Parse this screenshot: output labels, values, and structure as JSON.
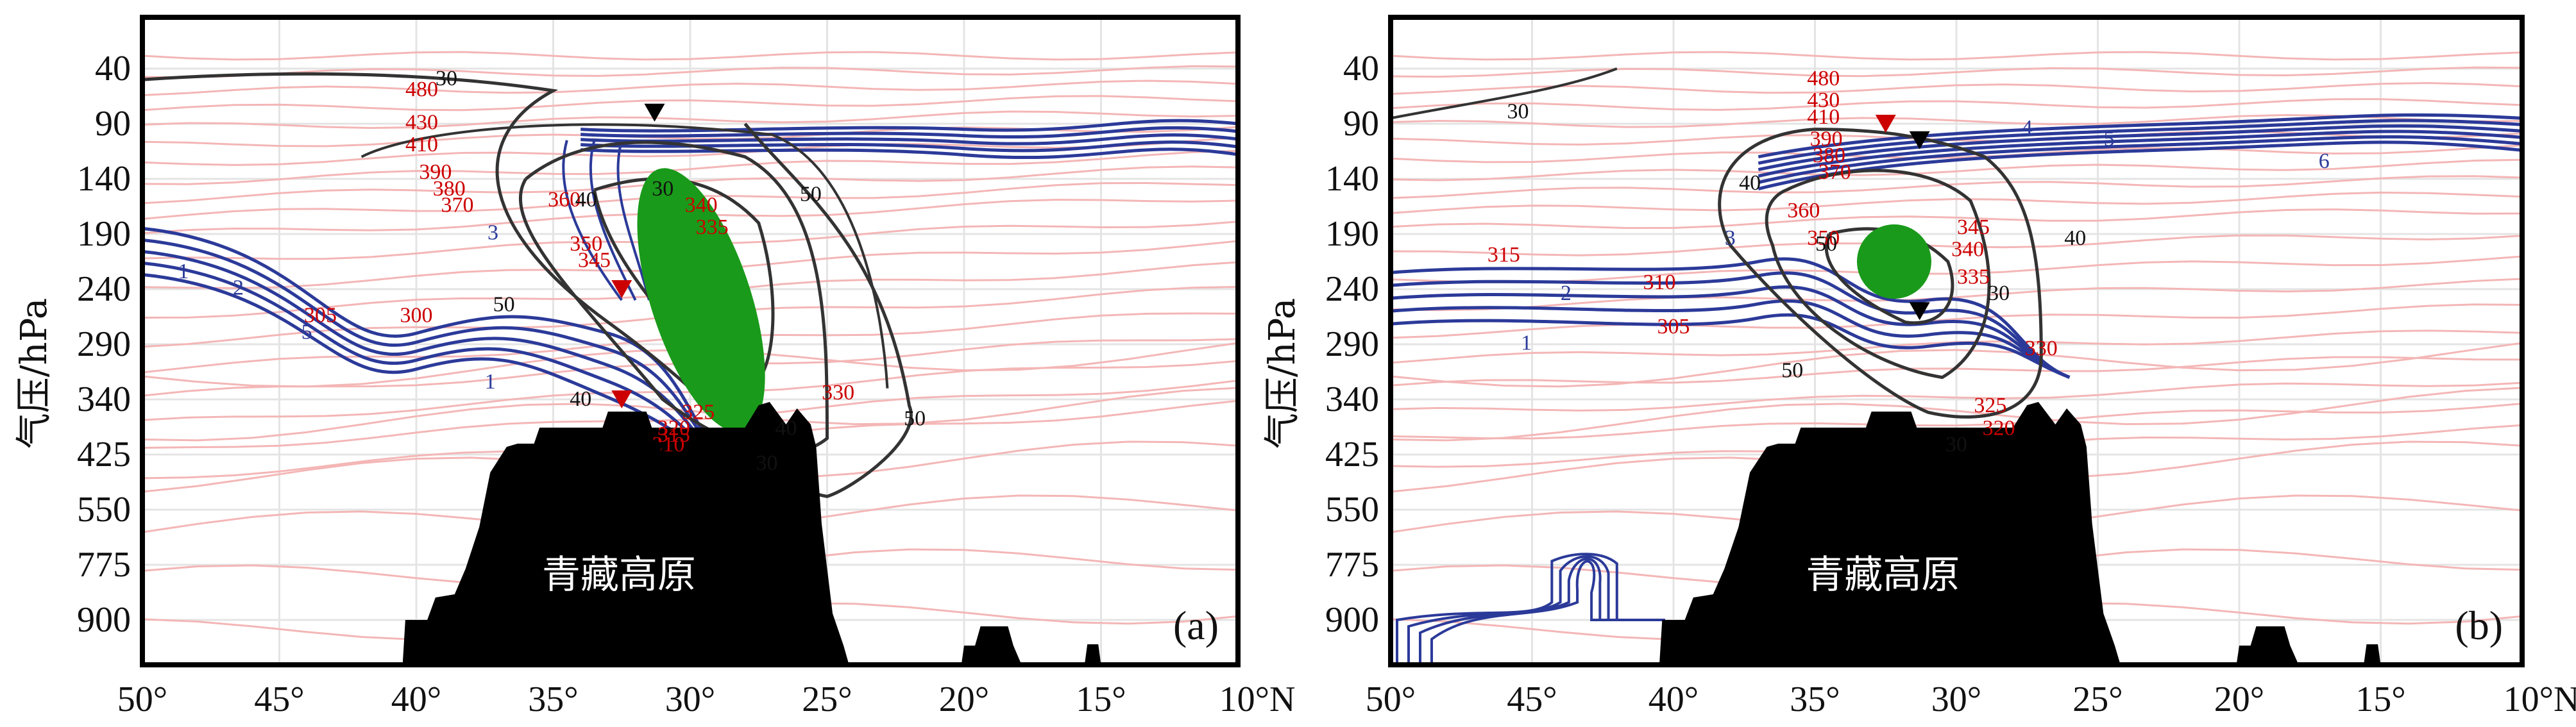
{
  "chart_data": [
    {
      "type": "contour",
      "panel_label": "(a)",
      "title": "",
      "xlabel": "",
      "ylabel": "气压/hPa",
      "x_ticks": [
        "50°",
        "45°",
        "40°",
        "35°",
        "30°",
        "25°",
        "20°",
        "15°",
        "10°N"
      ],
      "x_values": [
        50,
        45,
        40,
        35,
        30,
        25,
        20,
        15,
        10
      ],
      "xlim": [
        50,
        10
      ],
      "y_ticks": [
        "40",
        "90",
        "140",
        "190",
        "240",
        "290",
        "340",
        "425",
        "550",
        "775",
        "900"
      ],
      "y_values": [
        40,
        90,
        140,
        190,
        240,
        290,
        340,
        425,
        550,
        775,
        900
      ],
      "grid": true,
      "terrain_label": "青藏高原",
      "terrain_extent_lat": [
        40.5,
        24.5
      ],
      "series": [
        {
          "name": "potential_temperature",
          "color": "#cc0000",
          "line_color": "#f4b6b6",
          "labels": [
            "480",
            "430",
            "410",
            "390",
            "380",
            "370",
            "360",
            "350",
            "345",
            "340",
            "335",
            "330",
            "325",
            "320",
            "315",
            "310",
            "305",
            "300"
          ]
        },
        {
          "name": "PV",
          "color": "#2b3a99",
          "labels": [
            "1",
            "2",
            "3",
            "5"
          ]
        },
        {
          "name": "wind_speed",
          "color": "#333333",
          "labels": [
            "30",
            "40",
            "50"
          ]
        }
      ],
      "markers": [
        {
          "type": "triangle-down",
          "color": "#cc0000",
          "lat": 32.5,
          "p": 240
        },
        {
          "type": "triangle-down",
          "color": "#cc0000",
          "lat": 32.5,
          "p": 340
        },
        {
          "type": "triangle-down",
          "color": "#000000",
          "lat": 31.3,
          "p": 80
        },
        {
          "type": "triangle-down",
          "color": "#000000",
          "lat": 31.3,
          "p": 420
        }
      ],
      "highlight": {
        "shape": "ellipse",
        "color": "#1a9a1a",
        "center_lat": 29.6,
        "center_p": 250
      }
    },
    {
      "type": "contour",
      "panel_label": "(b)",
      "title": "",
      "xlabel": "",
      "ylabel": "气压/hPa",
      "x_ticks": [
        "50°",
        "45°",
        "40°",
        "35°",
        "30°",
        "25°",
        "20°",
        "15°",
        "10°N"
      ],
      "x_values": [
        50,
        45,
        40,
        35,
        30,
        25,
        20,
        15,
        10
      ],
      "xlim": [
        50,
        10
      ],
      "y_ticks": [
        "40",
        "90",
        "140",
        "190",
        "240",
        "290",
        "340",
        "425",
        "550",
        "775",
        "900"
      ],
      "y_values": [
        40,
        90,
        140,
        190,
        240,
        290,
        340,
        425,
        550,
        775,
        900
      ],
      "grid": true,
      "terrain_label": "青藏高原",
      "terrain_extent_lat": [
        40.5,
        24.5
      ],
      "series": [
        {
          "name": "potential_temperature",
          "color": "#cc0000",
          "line_color": "#f4b6b6",
          "labels": [
            "480",
            "430",
            "410",
            "390",
            "380",
            "370",
            "360",
            "350",
            "345",
            "340",
            "335",
            "330",
            "325",
            "320",
            "315",
            "310",
            "305"
          ]
        },
        {
          "name": "PV",
          "color": "#2b3a99",
          "labels": [
            "1",
            "2",
            "3",
            "4",
            "5",
            "6"
          ]
        },
        {
          "name": "wind_speed",
          "color": "#333333",
          "labels": [
            "30",
            "40",
            "50"
          ]
        }
      ],
      "markers": [
        {
          "type": "triangle-down",
          "color": "#cc0000",
          "lat": 32.5,
          "p": 90
        },
        {
          "type": "triangle-down",
          "color": "#000000",
          "lat": 31.3,
          "p": 105
        },
        {
          "type": "triangle-down",
          "color": "#000000",
          "lat": 31.3,
          "p": 260
        }
      ],
      "highlight": {
        "shape": "circle",
        "color": "#1a9a1a",
        "center_lat": 32.2,
        "center_p": 215
      }
    }
  ],
  "colors": {
    "theta_line": "#f4b6b6",
    "theta_label": "#cc0000",
    "pv": "#2b3a99",
    "wind": "#333333",
    "terrain": "#000000",
    "highlight": "#1a9a1a",
    "grid": "#e4e4e4"
  }
}
